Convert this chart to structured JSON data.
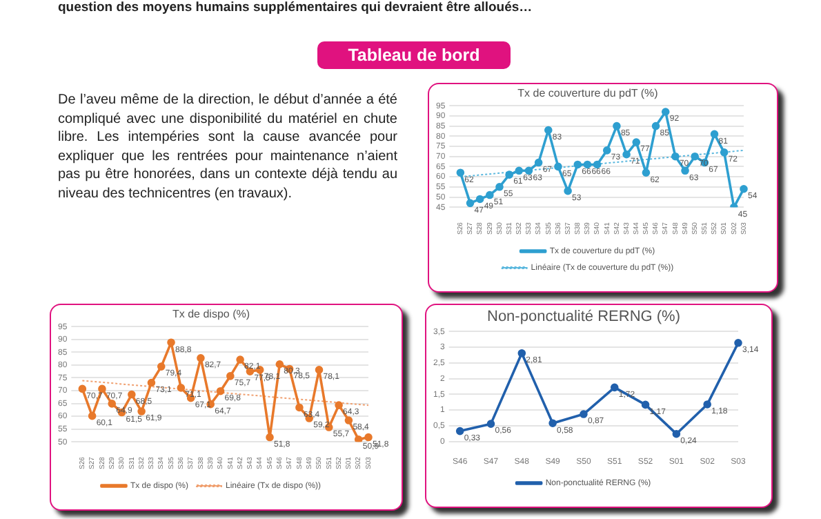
{
  "chart_data": [
    {
      "type": "other",
      "title": "Tableau de bord",
      "annotations": [
        "question des moyens humains supplémentaires qui devraient être alloués…",
        "De l’aveu même de la direction, le début d’année a été compliqué avec une disponibilité du matériel en chute libre. Les intempéries sont la cause avancée pour expliquer que les rentrées pour maintenance n’aient pas pu être honorées, dans un contexte déjà tendu au niveau des technicentres (en travaux)."
      ]
    },
    {
      "type": "line",
      "title": "Tx de couverture du pdT (%)",
      "categories": [
        "S26",
        "S27",
        "S28",
        "S29",
        "S30",
        "S31",
        "S32",
        "S33",
        "S34",
        "S35",
        "S36",
        "S37",
        "S38",
        "S39",
        "S40",
        "S41",
        "S42",
        "S43",
        "S44",
        "S45",
        "S46",
        "S47",
        "S48",
        "S49",
        "S50",
        "S51",
        "S52",
        "S01",
        "S02",
        "S03"
      ],
      "series": [
        {
          "name": "Tx de couverture du pdT (%)",
          "color": "#2e9fd0",
          "values": [
            62,
            47,
            49,
            51,
            55,
            61,
            63,
            63,
            67,
            83,
            65,
            53,
            66,
            66,
            66,
            73,
            85,
            71,
            77,
            62,
            85,
            92,
            70,
            63,
            70,
            67,
            81,
            72,
            45,
            54
          ],
          "value_labels": [
            "62",
            "47",
            "49",
            "51",
            "55",
            "61",
            "63",
            "63",
            "67",
            "83",
            "65",
            "53",
            "66",
            "66",
            "66",
            "73",
            "85",
            "71",
            "77",
            "62",
            "85",
            "92",
            "70",
            "63",
            "70",
            "67",
            "81",
            "72",
            "45",
            "54"
          ]
        },
        {
          "name": "Linéaire (Tx de couverture du pdT (%))",
          "type": "line",
          "color": "#5bb8de",
          "marker": "none",
          "line_style": "dotted",
          "values": [
            60,
            null,
            null,
            null,
            null,
            null,
            null,
            null,
            null,
            null,
            null,
            null,
            null,
            null,
            null,
            null,
            null,
            null,
            null,
            null,
            null,
            null,
            null,
            null,
            null,
            null,
            null,
            null,
            null,
            73
          ]
        }
      ],
      "ylim": [
        45,
        95
      ],
      "yticks": [
        45,
        50,
        55,
        60,
        65,
        70,
        75,
        80,
        85,
        90,
        95
      ],
      "grid": "y",
      "legend": "bottom",
      "marker": "circle"
    },
    {
      "type": "line",
      "title": "Tx de dispo (%)",
      "categories": [
        "S26",
        "S27",
        "S28",
        "S29",
        "S30",
        "S31",
        "S32",
        "S33",
        "S34",
        "S35",
        "S36",
        "S37",
        "S38",
        "S39",
        "S40",
        "S41",
        "S42",
        "S43",
        "S44",
        "S45",
        "S46",
        "S47",
        "S48",
        "S49",
        "S50",
        "S51",
        "S52",
        "S01",
        "S02",
        "S03"
      ],
      "series": [
        {
          "name": "Tx de dispo (%)",
          "color": "#e8792b",
          "values": [
            70.7,
            60.1,
            70.7,
            64.9,
            61.5,
            68.5,
            61.9,
            73.1,
            79.4,
            88.8,
            71.1,
            67.1,
            82.7,
            64.7,
            69.8,
            75.7,
            82.1,
            77.5,
            78.1,
            51.8,
            80.3,
            78.5,
            63.4,
            59.2,
            78.1,
            55.7,
            64.3,
            58.4,
            50.9,
            51.8
          ],
          "value_labels": [
            "70,7",
            "60,1",
            "70,7",
            "64,9",
            "61,5",
            "68,5",
            "61,9",
            "73,1",
            "79,4",
            "88,8",
            "71,1",
            "67,1",
            "82,7",
            "64,7",
            "69,8",
            "75,7",
            "82,1",
            "77,5",
            "78,1",
            "51,8",
            "80,3",
            "78,5",
            "63,4",
            "59,2",
            "78,1",
            "55,7",
            "64,3",
            "58,4",
            "50,9",
            "51,8"
          ]
        },
        {
          "name": "Linéaire (Tx de dispo (%))",
          "type": "line",
          "color": "#f0a070",
          "marker": "none",
          "line_style": "dotted",
          "values": [
            73.9,
            null,
            null,
            null,
            null,
            null,
            null,
            null,
            null,
            null,
            null,
            null,
            null,
            null,
            null,
            null,
            null,
            null,
            null,
            null,
            null,
            null,
            null,
            null,
            null,
            null,
            null,
            null,
            null,
            64.3
          ]
        }
      ],
      "ylim": [
        50,
        95
      ],
      "yticks": [
        50,
        55,
        60,
        65,
        70,
        75,
        80,
        85,
        90,
        95
      ],
      "grid": "y",
      "legend": "bottom",
      "marker": "circle"
    },
    {
      "type": "line",
      "title": "Non-ponctualité RERNG (%)",
      "categories": [
        "S46",
        "S47",
        "S48",
        "S49",
        "S50",
        "S51",
        "S52",
        "S01",
        "S02",
        "S03"
      ],
      "series": [
        {
          "name": "Non-ponctualité RERNG (%)",
          "color": "#2160ac",
          "values": [
            0.33,
            0.56,
            2.81,
            0.58,
            0.87,
            1.72,
            1.17,
            0.24,
            1.18,
            3.14
          ],
          "value_labels": [
            "0,33",
            "0,56",
            "2,81",
            "0,58",
            "0,87",
            "1,72",
            "1,17",
            "0,24",
            "1,18",
            "3,14"
          ]
        }
      ],
      "ylim": [
        0,
        3.5
      ],
      "yticks": [
        0,
        {
          "value": 0.5,
          "label": "0,5"
        },
        1,
        {
          "value": 1.5,
          "label": "1,5"
        },
        2,
        {
          "value": 2.5,
          "label": "2,5"
        },
        3,
        {
          "value": 3.5,
          "label": "3,5"
        }
      ],
      "grid": "y",
      "legend": "bottom",
      "marker": "circle"
    }
  ]
}
